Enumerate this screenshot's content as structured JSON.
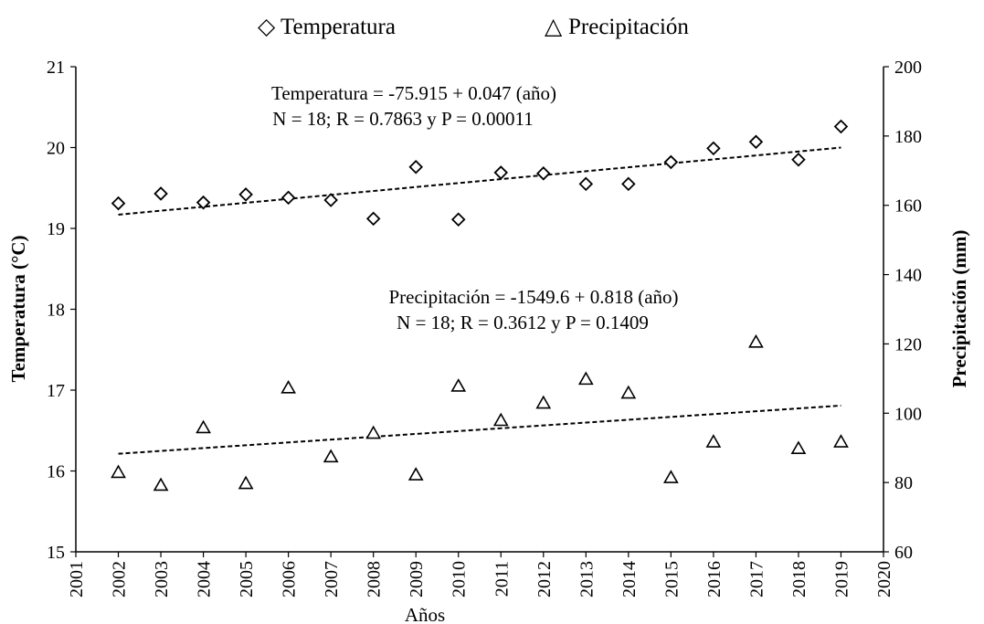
{
  "chart_data": {
    "type": "scatter",
    "xlabel": "Años",
    "ylabel_left": "Temperatura (°C)",
    "ylabel_right": "Precipitación (mm)",
    "xlim": [
      2001,
      2020
    ],
    "ylim_left": [
      15,
      21
    ],
    "ylim_right": [
      60,
      200
    ],
    "x_ticks": [
      "2001",
      "2002",
      "2003",
      "2004",
      "2005",
      "2006",
      "2007",
      "2008",
      "2009",
      "2010",
      "2011",
      "2012",
      "2013",
      "2014",
      "2015",
      "2016",
      "2017",
      "2018",
      "2019",
      "2020"
    ],
    "y_ticks_left": [
      "15",
      "16",
      "17",
      "18",
      "19",
      "20",
      "21"
    ],
    "y_ticks_right": [
      "60",
      "80",
      "100",
      "120",
      "140",
      "160",
      "180",
      "200"
    ],
    "legend": {
      "temperature": "Temperatura",
      "precipitation": "Precipitación",
      "temperature_marker": "◇",
      "precipitation_marker": "△"
    },
    "series": [
      {
        "name": "Temperatura",
        "axis": "left",
        "marker": "diamond",
        "x": [
          2002,
          2003,
          2004,
          2005,
          2006,
          2007,
          2008,
          2009,
          2010,
          2011,
          2012,
          2013,
          2014,
          2015,
          2016,
          2017,
          2018,
          2019
        ],
        "values": [
          19.31,
          19.43,
          19.32,
          19.42,
          19.38,
          19.35,
          19.12,
          19.76,
          19.11,
          19.69,
          19.68,
          19.55,
          19.55,
          19.82,
          19.99,
          20.07,
          19.85,
          20.26
        ],
        "trend": [
          19.17,
          20.0
        ],
        "equation_line1": "Temperatura = -75.915 + 0.047 (año)",
        "equation_line2": "N = 18; R = 0.7863 y P = 0.00011"
      },
      {
        "name": "Precipitación",
        "axis": "right",
        "marker": "triangle",
        "x": [
          2002,
          2003,
          2004,
          2005,
          2006,
          2007,
          2008,
          2009,
          2010,
          2011,
          2012,
          2013,
          2014,
          2015,
          2016,
          2017,
          2018,
          2019
        ],
        "values": [
          82.9,
          79.2,
          95.8,
          79.7,
          107.3,
          87.4,
          94.2,
          82.2,
          107.8,
          97.9,
          102.9,
          109.8,
          105.8,
          81.4,
          91.7,
          120.5,
          89.8,
          91.7
        ],
        "trend": [
          88.3,
          102.2
        ],
        "equation_line1": "Precipitación = -1549.6 + 0.818 (año)",
        "equation_line2": "N = 18; R = 0.3612 y P = 0.1409"
      }
    ],
    "colors": {
      "axis": "#000000",
      "marker": "#000000",
      "trend": "#000000",
      "background": "#ffffff"
    }
  }
}
